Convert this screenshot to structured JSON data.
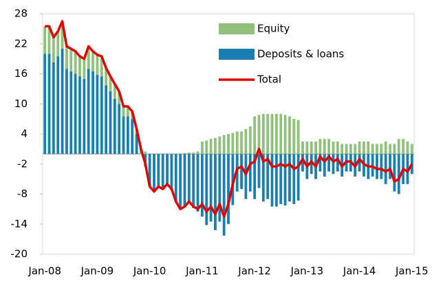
{
  "chart_data": {
    "type": "bar",
    "stacked": true,
    "categories": [
      "Jan-08",
      null,
      null,
      null,
      null,
      null,
      null,
      null,
      null,
      null,
      null,
      null,
      "Jan-09",
      null,
      null,
      null,
      null,
      null,
      null,
      null,
      null,
      null,
      null,
      null,
      "Jan-10",
      null,
      null,
      null,
      null,
      null,
      null,
      null,
      null,
      null,
      null,
      null,
      "Jan-11",
      null,
      null,
      null,
      null,
      null,
      null,
      null,
      null,
      null,
      null,
      null,
      "Jan-12",
      null,
      null,
      null,
      null,
      null,
      null,
      null,
      null,
      null,
      null,
      null,
      "Jan-13",
      null,
      null,
      null,
      null,
      null,
      null,
      null,
      null,
      null,
      null,
      null,
      "Jan-14",
      null,
      null,
      null,
      null,
      null,
      null,
      null,
      null,
      null,
      null,
      null,
      "Jan-15"
    ],
    "series": [
      {
        "name": "Equity",
        "type": "bar",
        "color": "#8fc17a",
        "values": [
          5.5,
          5.5,
          5,
          5,
          5.5,
          4.5,
          4.5,
          4.5,
          4,
          4,
          4.5,
          4,
          4,
          4,
          3.5,
          3,
          3,
          2.5,
          2,
          2,
          1.5,
          1,
          1,
          0.5,
          0,
          0,
          0,
          0,
          0,
          0,
          0,
          0,
          0.2,
          0.3,
          0.3,
          0.5,
          2.5,
          2.7,
          3,
          3.2,
          3.5,
          3.8,
          4,
          4.2,
          4.5,
          4.5,
          5,
          5.5,
          7.5,
          7.8,
          8,
          8,
          8,
          8,
          8,
          7.8,
          7.5,
          7,
          6.8,
          2.5,
          2.5,
          2.5,
          2.5,
          3,
          3,
          3,
          2.5,
          2.5,
          2,
          2,
          2,
          2,
          2.5,
          2.5,
          2.5,
          2,
          2,
          2,
          2.5,
          2,
          2,
          3,
          3,
          2.5,
          2
        ]
      },
      {
        "name": "Deposits & loans",
        "type": "bar",
        "color": "#1a7eb0",
        "values": [
          20,
          20,
          18.3,
          19.5,
          21,
          17,
          16.5,
          16,
          15.5,
          15,
          17,
          16.5,
          15.8,
          15.5,
          13.7,
          12.5,
          11,
          10,
          7.5,
          7.5,
          7,
          4,
          0,
          -2.5,
          -6.5,
          -7.5,
          -6.5,
          -7,
          -6,
          -7,
          -9.5,
          -11,
          -10.7,
          -9.8,
          -10.8,
          -11.5,
          -12.5,
          -14.2,
          -13.5,
          -15.2,
          -13.5,
          -16.3,
          -14,
          -10.2,
          -7.5,
          -7,
          -9,
          -7.5,
          -9,
          -6.8,
          -9.5,
          -9,
          -10.5,
          -10.5,
          -10,
          -10.3,
          -9.5,
          -10,
          -9.3,
          -3.5,
          -5,
          -4,
          -5,
          -3.5,
          -4.5,
          -3.5,
          -4,
          -3.5,
          -4.5,
          -3.5,
          -3.5,
          -4.5,
          -3.5,
          -4.5,
          -5,
          -4.5,
          -5,
          -5,
          -6,
          -5,
          -7.5,
          -8,
          -6,
          -6,
          -4
        ]
      },
      {
        "name": "Total",
        "type": "line",
        "color": "#e00000",
        "values": [
          25.5,
          25.5,
          23.3,
          24.5,
          26.5,
          21.5,
          21,
          20.5,
          19.5,
          19,
          21.5,
          20.5,
          19.8,
          19.5,
          17.2,
          15.5,
          14,
          12.5,
          9.5,
          9.5,
          8.5,
          5,
          1,
          -2,
          -6.5,
          -7.5,
          -6.5,
          -7,
          -6,
          -7,
          -9.5,
          -11,
          -10.5,
          -9.5,
          -10.5,
          -11,
          -10,
          -11.5,
          -10.5,
          -12,
          -10,
          -12.5,
          -10,
          -6,
          -3,
          -2.5,
          -4,
          -2,
          -1.5,
          1,
          -1.5,
          -1,
          -2.5,
          -2.5,
          -2,
          -2.5,
          -2,
          -3,
          -2.5,
          -1,
          -2.5,
          -1.5,
          -2.5,
          -0.5,
          -1.5,
          -0.5,
          -1.5,
          -1,
          -2.5,
          -1.5,
          -1.5,
          -2.5,
          -1,
          -2,
          -2.5,
          -2.5,
          -3,
          -3,
          -3.5,
          -3,
          -5.5,
          -5,
          -3,
          -3.5,
          -2
        ]
      }
    ],
    "ylim": [
      -20,
      28
    ],
    "yticks": [
      28,
      22,
      16,
      10,
      4,
      -2,
      -8,
      -14,
      -20
    ],
    "grid": false
  }
}
